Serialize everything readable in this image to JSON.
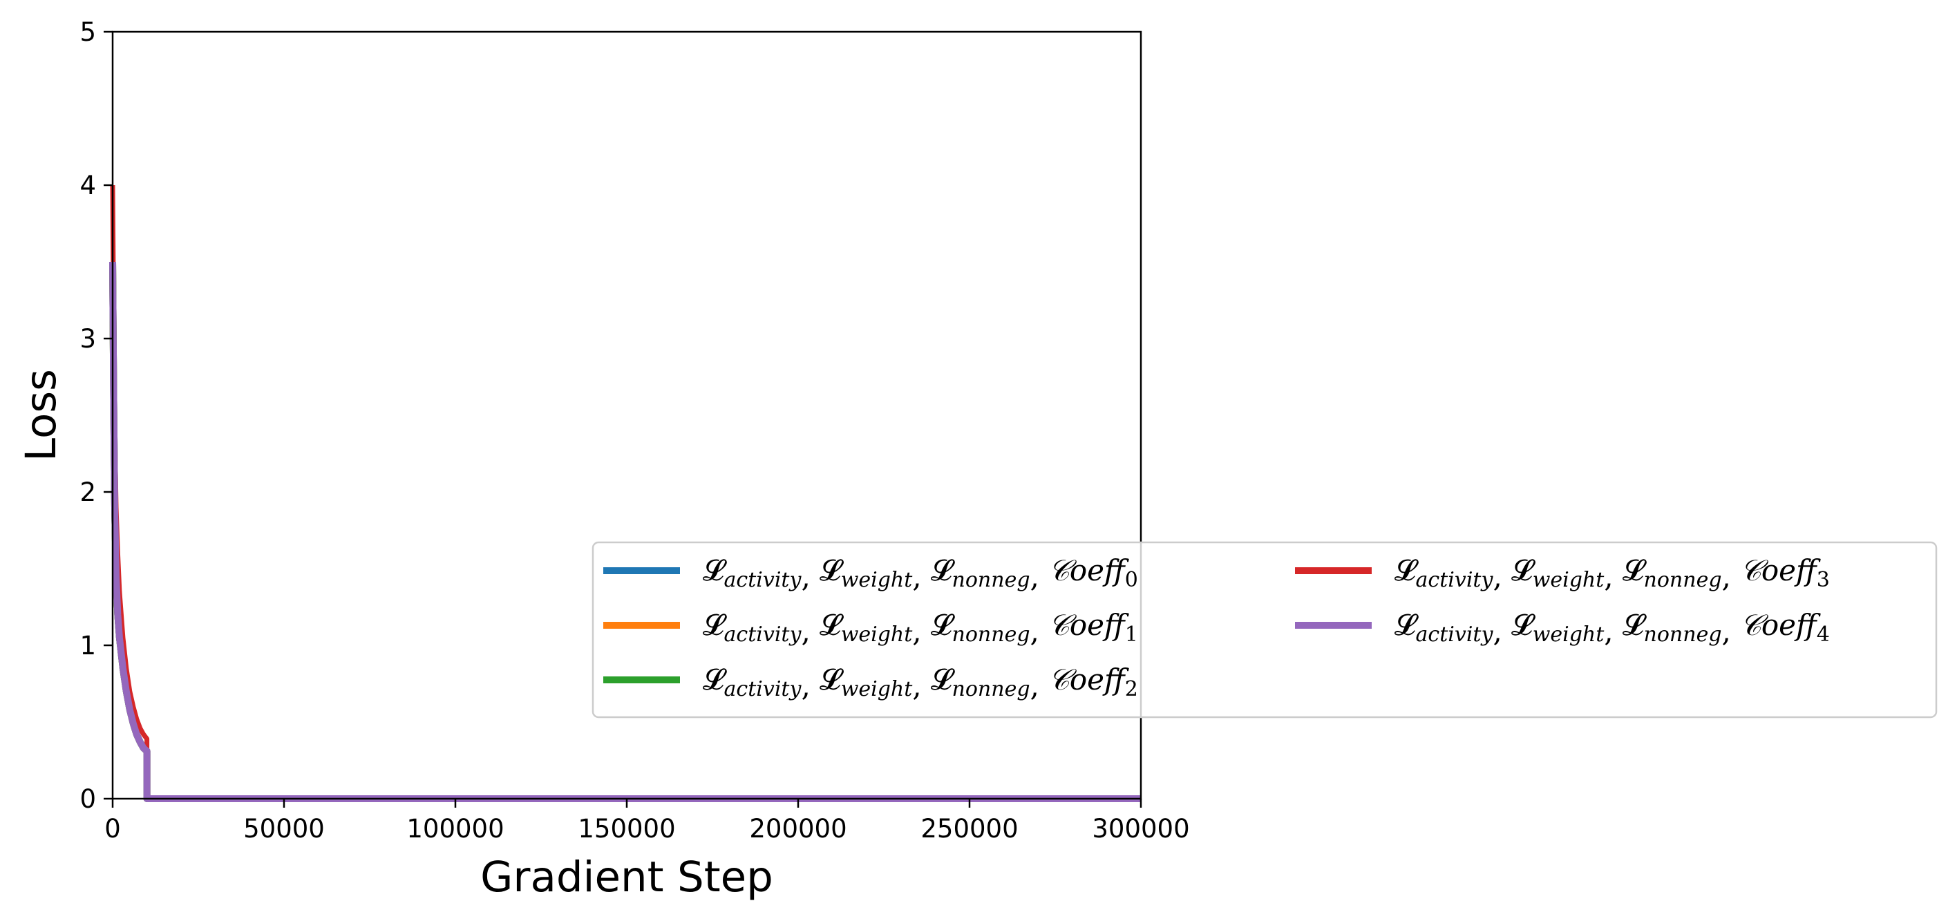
{
  "chart_data": {
    "type": "line",
    "title": "",
    "xlabel": "Gradient Step",
    "ylabel": "Loss",
    "xlim": [
      0,
      300000
    ],
    "ylim": [
      0,
      5
    ],
    "xticks": [
      0,
      50000,
      100000,
      150000,
      200000,
      250000,
      300000
    ],
    "xtick_labels": [
      "0",
      "50000",
      "100000",
      "150000",
      "200000",
      "250000",
      "300000"
    ],
    "yticks": [
      0,
      1,
      2,
      3,
      4,
      5
    ],
    "ytick_labels": [
      "0",
      "1",
      "2",
      "3",
      "4",
      "5"
    ],
    "grid": false,
    "legend_placement": "lower-right, extending beyond axes",
    "legend_columns": 2,
    "series": [
      {
        "name": "𝓛activity, 𝓛weight, 𝓛nonneg, 𝒞oeff0",
        "legend": {
          "main": "𝓛",
          "parts": [
            "activity",
            "weight",
            "nonneg"
          ],
          "coeff": "𝒞oeff",
          "coeff_sub": "0"
        },
        "color": "#1f77b4",
        "x": [
          0,
          300,
          600,
          1000,
          1500,
          2000,
          3000,
          4000,
          5000,
          6000,
          7000,
          8000,
          9000,
          10000,
          10001,
          300000
        ],
        "y": [
          3.5,
          2.6,
          1.9,
          1.45,
          1.2,
          1.05,
          0.85,
          0.7,
          0.58,
          0.49,
          0.42,
          0.37,
          0.33,
          0.31,
          0.0,
          0.0
        ]
      },
      {
        "name": "𝓛activity, 𝓛weight, 𝓛nonneg, 𝒞oeff1",
        "legend": {
          "main": "𝓛",
          "parts": [
            "activity",
            "weight",
            "nonneg"
          ],
          "coeff": "𝒞oeff",
          "coeff_sub": "1"
        },
        "color": "#ff7f0e",
        "x": [
          0,
          300,
          600,
          1000,
          1500,
          2000,
          3000,
          4000,
          5000,
          6000,
          7000,
          8000,
          9000,
          10000,
          10001,
          300000
        ],
        "y": [
          3.5,
          2.6,
          1.9,
          1.45,
          1.2,
          1.05,
          0.85,
          0.7,
          0.58,
          0.49,
          0.42,
          0.37,
          0.33,
          0.31,
          0.0,
          0.0
        ]
      },
      {
        "name": "𝓛activity, 𝓛weight, 𝓛nonneg, 𝒞oeff2",
        "legend": {
          "main": "𝓛",
          "parts": [
            "activity",
            "weight",
            "nonneg"
          ],
          "coeff": "𝒞oeff",
          "coeff_sub": "2"
        },
        "color": "#2ca02c",
        "x": [
          0,
          300,
          600,
          1000,
          1500,
          2000,
          3000,
          4000,
          5000,
          6000,
          7000,
          8000,
          9000,
          10000,
          10001,
          300000
        ],
        "y": [
          3.5,
          2.6,
          1.9,
          1.45,
          1.2,
          1.05,
          0.85,
          0.7,
          0.58,
          0.49,
          0.42,
          0.37,
          0.33,
          0.31,
          0.0,
          0.0
        ]
      },
      {
        "name": "𝓛activity, 𝓛weight, 𝓛nonneg, 𝒞oeff3",
        "legend": {
          "main": "𝓛",
          "parts": [
            "activity",
            "weight",
            "nonneg"
          ],
          "coeff": "𝒞oeff",
          "coeff_sub": "3"
        },
        "color": "#d62728",
        "x": [
          0,
          300,
          600,
          1000,
          1500,
          2000,
          3000,
          4000,
          5000,
          6000,
          7000,
          8000,
          9000,
          10000,
          10001,
          300000
        ],
        "y": [
          4.0,
          3.1,
          2.4,
          1.9,
          1.6,
          1.35,
          1.05,
          0.85,
          0.7,
          0.6,
          0.52,
          0.46,
          0.42,
          0.39,
          0.0,
          0.0
        ]
      },
      {
        "name": "𝓛activity, 𝓛weight, 𝓛nonneg, 𝒞oeff4",
        "legend": {
          "main": "𝓛",
          "parts": [
            "activity",
            "weight",
            "nonneg"
          ],
          "coeff": "𝒞oeff",
          "coeff_sub": "4"
        },
        "color": "#9467bd",
        "x": [
          0,
          300,
          600,
          1000,
          1500,
          2000,
          3000,
          4000,
          5000,
          6000,
          7000,
          8000,
          9000,
          10000,
          10001,
          300000
        ],
        "y": [
          3.5,
          2.6,
          1.9,
          1.45,
          1.2,
          1.05,
          0.85,
          0.7,
          0.58,
          0.49,
          0.42,
          0.37,
          0.33,
          0.31,
          0.0,
          0.0
        ]
      }
    ]
  }
}
